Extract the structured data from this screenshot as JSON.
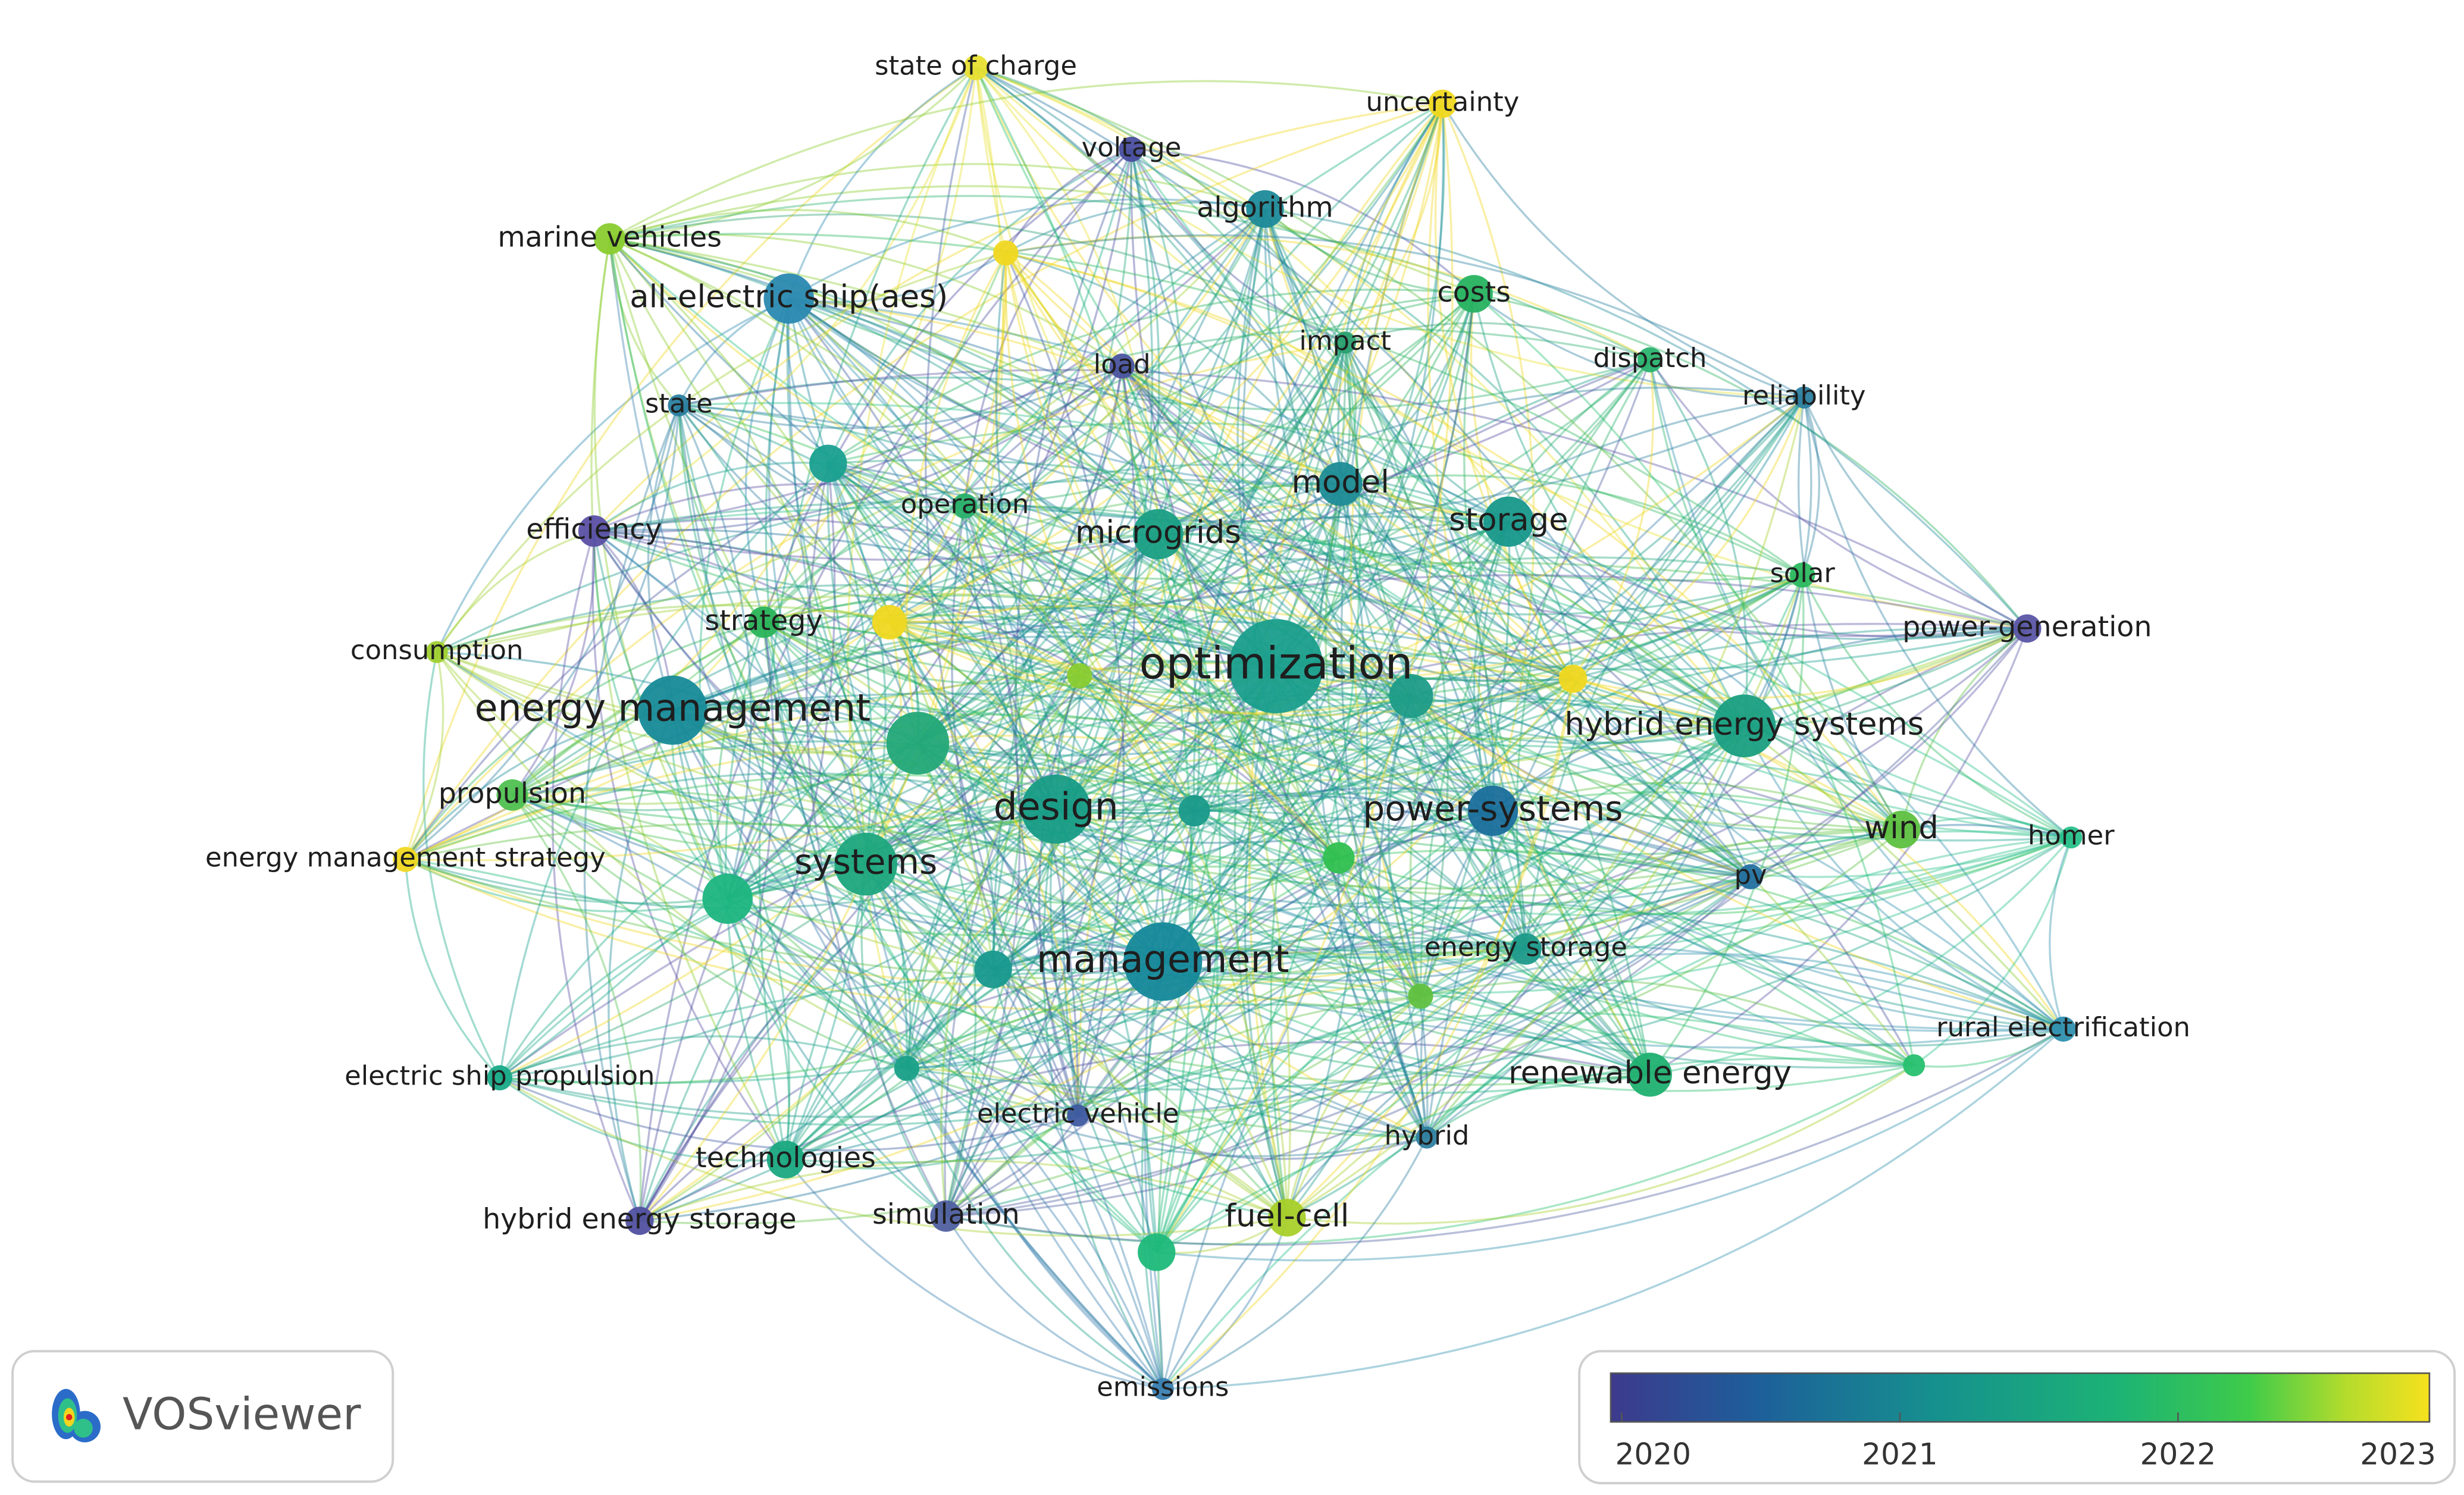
{
  "nodes": [
    {
      "label": "optimization"
    },
    {
      "label": "energy management"
    },
    {
      "label": "management"
    },
    {
      "label": "design"
    },
    {
      "label": "systems"
    },
    {
      "label": "power-systems"
    },
    {
      "label": "hybrid energy systems"
    },
    {
      "label": "microgrids"
    },
    {
      "label": "storage"
    },
    {
      "label": "model"
    },
    {
      "label": "all-electric ship(aes)"
    },
    {
      "label": "algorithm"
    },
    {
      "label": "costs"
    },
    {
      "label": "state of charge"
    },
    {
      "label": "uncertainty"
    },
    {
      "label": "voltage"
    },
    {
      "label": "marine vehicles"
    },
    {
      "label": "load"
    },
    {
      "label": "impact"
    },
    {
      "label": "dispatch"
    },
    {
      "label": "reliability"
    },
    {
      "label": "state"
    },
    {
      "label": "operation"
    },
    {
      "label": "efficiency"
    },
    {
      "label": "solar"
    },
    {
      "label": "strategy"
    },
    {
      "label": "consumption"
    },
    {
      "label": "power-generation"
    },
    {
      "label": "propulsion"
    },
    {
      "label": "energy management strategy"
    },
    {
      "label": "wind"
    },
    {
      "label": "homer"
    },
    {
      "label": "pv"
    },
    {
      "label": "energy storage"
    },
    {
      "label": "rural electrification"
    },
    {
      "label": "renewable energy"
    },
    {
      "label": "electric ship propulsion"
    },
    {
      "label": "electric vehicle"
    },
    {
      "label": "technologies"
    },
    {
      "label": "hybrid"
    },
    {
      "label": "hybrid energy storage"
    },
    {
      "label": "simulation"
    },
    {
      "label": "fuel-cell"
    },
    {
      "label": "emissions"
    }
  ],
  "legend": {
    "ticks": [
      "2020",
      "2021",
      "2022",
      "2023"
    ]
  },
  "logo": {
    "text": "VOSviewer"
  }
}
